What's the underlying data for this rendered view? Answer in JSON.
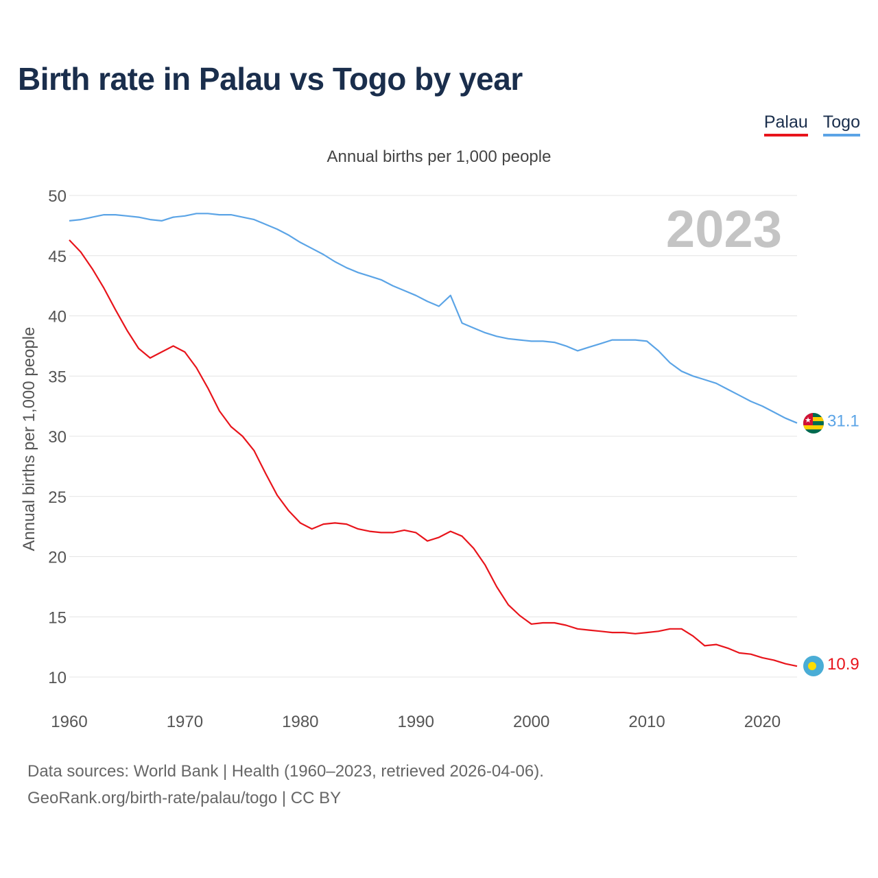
{
  "title": "Birth rate in Palau vs Togo by year",
  "legend": [
    {
      "label": "Palau",
      "color": "#e8141b"
    },
    {
      "label": "Togo",
      "color": "#5ba4e6"
    }
  ],
  "subtitle": "Annual births per 1,000 people",
  "footer": {
    "line1": "Data sources: World Bank | Health (1960–2023, retrieved 2026-04-06).",
    "line2": "GeoRank.org/birth-rate/palau/togo | CC BY"
  },
  "chart_data": {
    "type": "line",
    "title": "Birth rate in Palau vs Togo by year",
    "xlabel": "",
    "ylabel": "Annual births per 1,000 people",
    "year_label": "2023",
    "xlim": [
      1960,
      2023
    ],
    "ylim": [
      10,
      50
    ],
    "x_ticks": [
      1960,
      1970,
      1980,
      1990,
      2000,
      2010,
      2020
    ],
    "y_ticks": [
      10,
      15,
      20,
      25,
      30,
      35,
      40,
      45,
      50
    ],
    "grid": true,
    "legend_position": "top-right",
    "x": [
      1960,
      1961,
      1962,
      1963,
      1964,
      1965,
      1966,
      1967,
      1968,
      1969,
      1970,
      1971,
      1972,
      1973,
      1974,
      1975,
      1976,
      1977,
      1978,
      1979,
      1980,
      1981,
      1982,
      1983,
      1984,
      1985,
      1986,
      1987,
      1988,
      1989,
      1990,
      1991,
      1992,
      1993,
      1994,
      1995,
      1996,
      1997,
      1998,
      1999,
      2000,
      2001,
      2002,
      2003,
      2004,
      2005,
      2006,
      2007,
      2008,
      2009,
      2010,
      2011,
      2012,
      2013,
      2014,
      2015,
      2016,
      2017,
      2018,
      2019,
      2020,
      2021,
      2022,
      2023
    ],
    "series": [
      {
        "name": "Palau",
        "color": "#e8141b",
        "end_label": "10.9",
        "flag_icon": "palau-flag-icon",
        "values": [
          46.3,
          45.3,
          43.9,
          42.3,
          40.5,
          38.8,
          37.3,
          36.5,
          37.0,
          37.5,
          37.0,
          35.7,
          34.0,
          32.1,
          30.8,
          30.0,
          28.8,
          26.9,
          25.1,
          23.8,
          22.8,
          22.3,
          22.7,
          22.8,
          22.7,
          22.3,
          22.1,
          22.0,
          22.0,
          22.2,
          22.0,
          21.3,
          21.6,
          22.1,
          21.7,
          20.7,
          19.3,
          17.5,
          16.0,
          15.1,
          14.4,
          14.5,
          14.5,
          14.3,
          14.0,
          13.9,
          13.8,
          13.7,
          13.7,
          13.6,
          13.7,
          13.8,
          14.0,
          14.0,
          13.4,
          12.6,
          12.7,
          12.4,
          12.0,
          11.9,
          11.6,
          11.4,
          11.1,
          10.9
        ]
      },
      {
        "name": "Togo",
        "color": "#5ba4e6",
        "end_label": "31.1",
        "flag_icon": "togo-flag-icon",
        "values": [
          47.9,
          48.0,
          48.2,
          48.4,
          48.4,
          48.3,
          48.2,
          48.0,
          47.9,
          48.2,
          48.3,
          48.5,
          48.5,
          48.4,
          48.4,
          48.2,
          48.0,
          47.6,
          47.2,
          46.7,
          46.1,
          45.6,
          45.1,
          44.5,
          44.0,
          43.6,
          43.3,
          43.0,
          42.5,
          42.1,
          41.7,
          41.2,
          40.8,
          41.7,
          39.4,
          39.0,
          38.6,
          38.3,
          38.1,
          38.0,
          37.9,
          37.9,
          37.8,
          37.5,
          37.1,
          37.4,
          37.7,
          38.0,
          38.0,
          38.0,
          37.9,
          37.1,
          36.1,
          35.4,
          35.0,
          34.7,
          34.4,
          33.9,
          33.4,
          32.9,
          32.5,
          32.0,
          31.5,
          31.1
        ]
      }
    ]
  }
}
